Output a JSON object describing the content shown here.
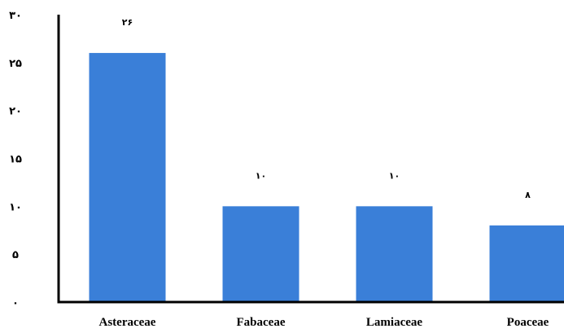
{
  "chart_data": {
    "type": "bar",
    "categories": [
      "Asteraceae",
      "Fabaceae",
      "Lamiaceae",
      "Poaceae"
    ],
    "values": [
      26,
      10,
      10,
      8
    ],
    "value_labels": [
      "۲۶",
      "۱۰",
      "۱۰",
      "۸"
    ],
    "ylim": [
      0,
      30
    ],
    "y_ticks": [
      0,
      5,
      10,
      15,
      20,
      25,
      30
    ],
    "y_tick_labels": [
      "۰",
      "۵",
      "۱۰",
      "۱۵",
      "۲۰",
      "۲۵",
      "۳۰"
    ],
    "bar_color": "#3a7fd8",
    "grid": false,
    "title": "",
    "xlabel": "",
    "ylabel": ""
  }
}
